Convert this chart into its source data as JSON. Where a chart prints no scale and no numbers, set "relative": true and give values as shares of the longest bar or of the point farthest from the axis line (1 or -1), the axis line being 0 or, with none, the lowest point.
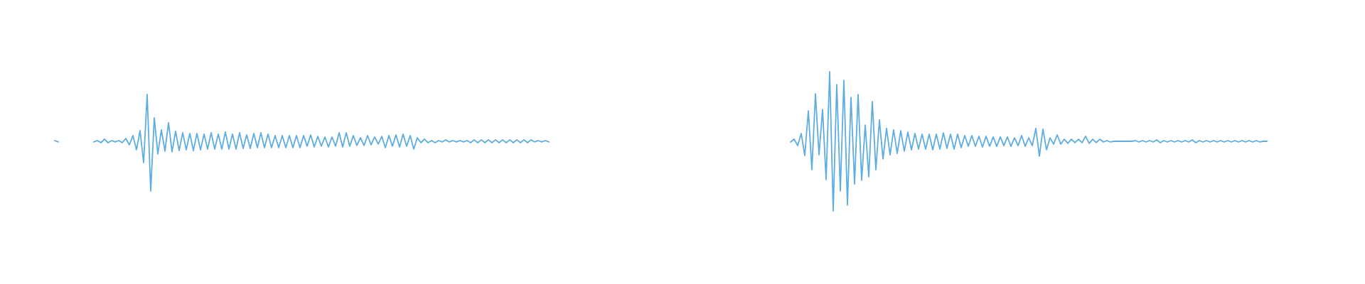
{
  "chart_data": [
    {
      "type": "line",
      "relative": true,
      "categories": [
        null,
        null,
        null,
        null,
        null,
        null,
        null,
        null,
        null,
        null,
        null,
        null,
        null,
        null,
        null,
        null,
        null,
        null,
        null,
        null,
        null,
        null,
        null,
        null,
        null,
        null,
        null,
        null,
        null,
        null,
        null,
        null,
        null,
        null,
        null,
        null,
        null,
        null,
        null,
        null,
        null,
        null,
        null,
        null,
        null,
        null,
        null,
        null,
        null,
        null,
        null,
        null,
        null,
        null,
        null,
        null,
        null,
        null,
        null,
        null,
        null,
        null,
        null,
        null,
        null,
        null,
        null,
        null,
        null,
        null,
        null,
        null,
        null,
        null,
        null,
        null,
        null,
        null,
        null,
        null,
        null,
        null,
        null,
        null,
        null,
        null,
        null,
        null,
        null,
        null,
        null,
        null,
        null,
        null,
        null,
        null,
        null,
        null,
        null,
        null,
        null,
        null,
        null,
        null,
        null,
        null,
        null,
        null,
        null,
        null,
        null,
        null,
        null,
        null,
        null,
        null,
        null,
        null,
        null,
        null,
        null,
        null,
        null,
        null,
        null,
        null,
        null,
        null,
        null,
        null,
        null,
        null,
        null,
        null,
        null,
        null,
        null,
        null,
        null,
        null
      ],
      "series": [
        {
          "color": "#5dade2",
          "values": [
            0.522,
            0.508,
            null,
            null,
            null,
            null,
            null,
            null,
            null,
            null,
            null,
            null,
            null,
            null,
            null,
            null,
            null,
            null,
            null,
            null,
            null,
            null,
            null,
            null,
            null,
            null,
            null,
            null,
            null,
            null,
            null,
            null,
            null,
            null,
            null,
            null,
            null,
            null,
            null,
            null,
            null,
            null,
            null,
            null,
            null,
            null,
            null,
            null,
            null,
            null,
            null,
            null,
            null,
            null,
            null,
            null,
            null,
            null,
            null,
            null,
            null,
            null,
            null,
            null,
            null,
            null,
            null,
            null,
            null,
            null,
            null,
            null,
            null,
            null,
            null,
            null,
            null,
            null,
            null,
            null,
            null,
            null,
            null,
            null,
            null,
            null,
            null,
            null,
            null,
            null,
            null,
            null,
            null,
            null,
            null,
            null,
            null,
            null,
            null,
            null,
            null,
            null,
            null,
            null,
            null,
            null,
            null,
            null,
            null,
            null,
            null,
            null,
            null,
            null,
            null,
            null,
            null,
            null,
            null,
            null,
            null,
            null,
            null,
            null,
            null,
            null,
            null,
            null,
            null,
            null,
            null,
            null,
            null,
            null,
            null,
            null,
            null,
            null,
            null,
            null
          ]
        },
        {
          "color": "#5dade2",
          "values": [
            null,
            null,
            null,
            null,
            null,
            null,
            null,
            null,
            null,
            null,
            null,
            0.508,
            0.522,
            0.5,
            0.537,
            0.5,
            0.522,
            0.508,
            0.522,
            0.5,
            0.544,
            0.478,
            0.574,
            0.427,
            0.625,
            0.294,
            1,
            0,
            0.758,
            0.383,
            0.633,
            0.412,
            0.706,
            0.405,
            0.618,
            0.419,
            0.603,
            0.427,
            0.596,
            0.419,
            0.596,
            0.427,
            0.589,
            0.434,
            0.603,
            0.434,
            0.589,
            0.434,
            0.611,
            0.434,
            0.589,
            0.434,
            0.603,
            0.441,
            0.581,
            0.441,
            0.596,
            0.449,
            0.603,
            0.449,
            0.589,
            0.449,
            0.574,
            0.449,
            0.574,
            0.449,
            0.574,
            0.449,
            0.574,
            0.449,
            0.574,
            0.464,
            0.581,
            0.456,
            0.566,
            0.464,
            0.559,
            0.456,
            0.559,
            0.464,
            0.603,
            0.456,
            0.603,
            0.464,
            0.574,
            0.471,
            0.552,
            0.471,
            0.574,
            0.478,
            0.559,
            0.486,
            0.566,
            0.449,
            0.574,
            0.464,
            0.581,
            0.456,
            0.589,
            0.464,
            0.574,
            0.434,
            0.552,
            0.5,
            0.537,
            0.5,
            0.522,
            0.5,
            0.522,
            0.508,
            0.53,
            0.508,
            0.522,
            0.508,
            0.522,
            0.508,
            0.522,
            0.5,
            0.53,
            0.5,
            0.53,
            0.5,
            0.53,
            0.5,
            0.53,
            0.5,
            0.53,
            0.5,
            0.53,
            0.5,
            0.53,
            0.5,
            0.53,
            0.5,
            0.53,
            0.508,
            0.522,
            0.508,
            0.522,
            0.508
          ]
        }
      ]
    },
    {
      "type": "line",
      "relative": true,
      "categories": [
        null,
        null,
        null,
        null,
        null,
        null,
        null,
        null,
        null,
        null,
        null,
        null,
        null,
        null,
        null,
        null,
        null,
        null,
        null,
        null,
        null,
        null,
        null,
        null,
        null,
        null,
        null,
        null,
        null,
        null,
        null,
        null,
        null,
        null,
        null,
        null,
        null,
        null,
        null,
        null,
        null,
        null,
        null,
        null,
        null,
        null,
        null,
        null,
        null,
        null,
        null,
        null,
        null,
        null,
        null,
        null,
        null,
        null,
        null,
        null,
        null,
        null,
        null,
        null,
        null,
        null,
        null,
        null,
        null,
        null,
        null,
        null,
        null,
        null,
        null,
        null,
        null,
        null,
        null,
        null,
        null,
        null,
        null,
        null,
        null,
        null,
        null,
        null,
        null,
        null,
        null,
        null,
        null,
        null,
        null,
        null,
        null,
        null,
        null,
        null,
        null,
        null,
        null,
        null,
        null,
        null,
        null,
        null,
        null,
        null,
        null,
        null,
        null,
        null,
        null,
        null,
        null,
        null,
        null,
        null,
        null,
        null,
        null,
        null,
        null,
        null,
        null,
        null,
        null,
        null,
        null,
        null,
        null,
        null,
        null
      ],
      "series": [
        {
          "color": "#5dade2",
          "values": [
            0.495,
            0.515,
            0.469,
            0.556,
            0.398,
            0.719,
            0.296,
            0.841,
            0.403,
            0.729,
            0.225,
            1,
            0,
            0.908,
            0.143,
            0.938,
            0.042,
            0.816,
            0.194,
            0.836,
            0.22,
            0.617,
            0.245,
            0.785,
            0.296,
            0.653,
            0.373,
            0.592,
            0.403,
            0.582,
            0.413,
            0.576,
            0.429,
            0.566,
            0.439,
            0.556,
            0.444,
            0.551,
            0.444,
            0.551,
            0.439,
            0.551,
            0.444,
            0.561,
            0.449,
            0.551,
            0.444,
            0.551,
            0.454,
            0.541,
            0.464,
            0.541,
            0.464,
            0.536,
            0.459,
            0.536,
            0.464,
            0.531,
            0.464,
            0.531,
            0.469,
            0.531,
            0.464,
            0.525,
            0.469,
            0.541,
            0.464,
            0.525,
            0.469,
            0.592,
            0.393,
            0.587,
            0.439,
            0.525,
            0.48,
            0.546,
            0.48,
            0.515,
            0.485,
            0.515,
            0.49,
            0.515,
            0.49,
            0.536,
            0.485,
            0.515,
            0.49,
            0.515,
            0.495,
            0.505,
            0.495,
            0.5,
            0.5,
            0.5,
            0.5,
            0.5,
            0.5,
            0.505,
            0.495,
            0.505,
            0.495,
            0.505,
            0.495,
            0.51,
            0.49,
            0.505,
            0.495,
            0.505,
            0.495,
            0.505,
            0.495,
            0.505,
            0.495,
            0.51,
            0.49,
            0.505,
            0.495,
            0.505,
            0.495,
            0.505,
            0.495,
            0.505,
            0.495,
            0.505,
            0.495,
            0.505,
            0.495,
            0.505,
            0.495,
            0.505,
            0.495,
            0.505,
            0.495,
            0.5,
            0.5
          ]
        }
      ]
    }
  ]
}
